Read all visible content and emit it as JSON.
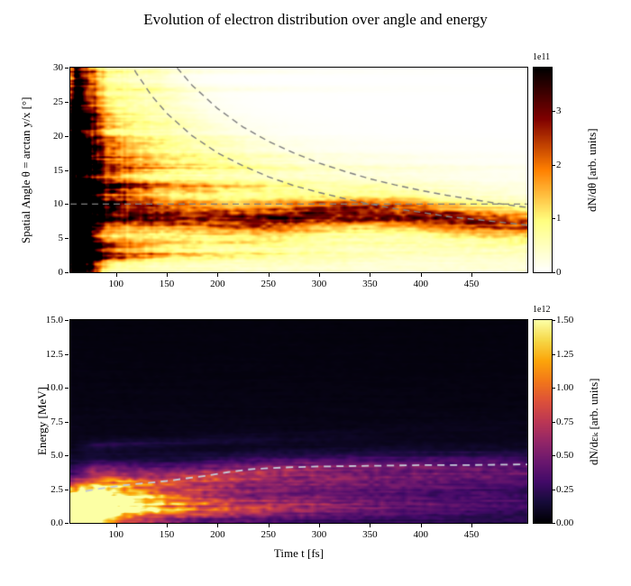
{
  "figure": {
    "title": "Evolution of electron distribution over angle and energy"
  },
  "chart_data": [
    {
      "type": "heatmap",
      "name": "angle-vs-time",
      "ylabel": "Spatial Angle θ = arctan y/x [°]",
      "xlim": [
        55,
        505
      ],
      "ylim": [
        0,
        30
      ],
      "vmax": 3.8,
      "xticks": [
        100,
        150,
        200,
        250,
        300,
        350,
        400,
        450
      ],
      "xtick_labels": [
        "100",
        "150",
        "200",
        "250",
        "300",
        "350",
        "400",
        "450"
      ],
      "yticks": [
        0,
        5,
        10,
        15,
        20,
        25,
        30
      ],
      "ytick_labels": [
        "0",
        "5",
        "10",
        "15",
        "20",
        "25",
        "30"
      ],
      "colormap": "afmhot_r",
      "colorbar": {
        "scale_label": "1e11",
        "label": "dN/dθ [arb. units]",
        "ticks": [
          0,
          1,
          2,
          3
        ],
        "tick_labels": [
          "0",
          "1",
          "2",
          "3"
        ]
      },
      "overlays": [
        {
          "name": "angle-threshold-line",
          "color": "#7f7f7f",
          "width": 1.4,
          "dash": [
            7,
            5
          ],
          "points": [
            [
              55,
              10
            ],
            [
              505,
              10
            ]
          ]
        },
        {
          "name": "envelope-curve-inner",
          "color": "#7f7f7f",
          "width": 1.4,
          "dash": [
            7,
            5
          ],
          "points": [
            [
              113,
              31
            ],
            [
              120,
              29.2
            ],
            [
              135,
              25.9
            ],
            [
              150,
              23.3
            ],
            [
              175,
              20
            ],
            [
              200,
              17.5
            ],
            [
              225,
              15.6
            ],
            [
              250,
              14
            ],
            [
              275,
              12.7
            ],
            [
              300,
              11.7
            ],
            [
              325,
              10.8
            ],
            [
              350,
              10
            ],
            [
              375,
              9.3
            ],
            [
              400,
              8.8
            ],
            [
              425,
              8.2
            ],
            [
              450,
              7.8
            ],
            [
              475,
              7.4
            ],
            [
              505,
              6.9
            ]
          ]
        },
        {
          "name": "envelope-curve-outer",
          "color": "#7f7f7f",
          "width": 1.4,
          "dash": [
            7,
            5
          ],
          "points": [
            [
              152,
              31
            ],
            [
              160,
              30
            ],
            [
              175,
              27.4
            ],
            [
              200,
              24
            ],
            [
              225,
              21.3
            ],
            [
              250,
              19.2
            ],
            [
              275,
              17.5
            ],
            [
              300,
              16
            ],
            [
              325,
              14.8
            ],
            [
              350,
              13.7
            ],
            [
              375,
              12.8
            ],
            [
              400,
              12
            ],
            [
              425,
              11.3
            ],
            [
              450,
              10.7
            ],
            [
              475,
              10.1
            ],
            [
              505,
              9.5
            ]
          ]
        }
      ],
      "field": {
        "background": 0.0,
        "noise": {
          "seed": 5
        },
        "streaks": {
          "seed": 11,
          "count": 80
        },
        "burst": {
          "t0": 60,
          "sigma_t": 13,
          "amp": 4.2,
          "theta_taper": 0.45
        },
        "shoulder": {
          "t0": 70,
          "sigma_t": 38,
          "amp": 1.1,
          "theta_center": 13,
          "theta_scale": 8
        },
        "band": {
          "amp_base": 1.7,
          "amp_peak": 0.5,
          "peak_t": 300,
          "peak_sigma": 90,
          "sigma": 1.4,
          "skirt_amp": 0.4,
          "skirt_sigma": 3.5,
          "center_points": [
            [
              55,
              9.2
            ],
            [
              100,
              8.8
            ],
            [
              150,
              8.3
            ],
            [
              200,
              7.9
            ],
            [
              250,
              7.8
            ],
            [
              300,
              8.4
            ],
            [
              350,
              8.7
            ],
            [
              400,
              8.3
            ],
            [
              450,
              7.6
            ],
            [
              505,
              7.0
            ]
          ]
        },
        "fan": {
          "amp": 0.5,
          "env_coef": 4300,
          "env_max": 30,
          "soft": 2.5,
          "t_decay": 500
        }
      }
    },
    {
      "type": "heatmap",
      "name": "energy-vs-time",
      "xlabel": "Time t [fs]",
      "ylabel": "Energy [MeV]",
      "xlim": [
        55,
        505
      ],
      "ylim": [
        0,
        15
      ],
      "vmax": 1.5,
      "xticks": [
        100,
        150,
        200,
        250,
        300,
        350,
        400,
        450
      ],
      "xtick_labels": [
        "100",
        "150",
        "200",
        "250",
        "300",
        "350",
        "400",
        "450"
      ],
      "yticks": [
        0,
        2.5,
        5,
        7.5,
        10,
        12.5,
        15
      ],
      "ytick_labels": [
        "0.0",
        "2.5",
        "5.0",
        "7.5",
        "10.0",
        "12.5",
        "15.0"
      ],
      "colormap": "inferno",
      "colorbar": {
        "scale_label": "1e12",
        "label": "dN/dεₖ [arb. units]",
        "ticks": [
          0,
          0.25,
          0.5,
          0.75,
          1,
          1.25,
          1.5
        ],
        "tick_labels": [
          "0.00",
          "0.25",
          "0.50",
          "0.75",
          "1.00",
          "1.25",
          "1.50"
        ]
      },
      "overlays": [
        {
          "name": "mean-energy-curve",
          "color": "#c3c9d8",
          "width": 1.8,
          "dash": [
            8,
            6
          ],
          "points": [
            [
              70,
              2.35
            ],
            [
              90,
              2.6
            ],
            [
              110,
              2.8
            ],
            [
              130,
              2.95
            ],
            [
              150,
              3.1
            ],
            [
              170,
              3.3
            ],
            [
              190,
              3.5
            ],
            [
              210,
              3.75
            ],
            [
              230,
              3.95
            ],
            [
              250,
              4.05
            ],
            [
              275,
              4.12
            ],
            [
              300,
              4.17
            ],
            [
              350,
              4.22
            ],
            [
              400,
              4.27
            ],
            [
              450,
              4.28
            ],
            [
              505,
              4.33
            ]
          ]
        }
      ],
      "field": {
        "background": 0.02,
        "noise": {
          "seed": 9
        },
        "wisps": {
          "seed": 21,
          "count": 60
        },
        "burst": {
          "t0": 63,
          "sigma_t": 13,
          "e0": 0.7,
          "sigma_e": 0.9,
          "amp": 1.7
        },
        "burst2": {
          "t0": 80,
          "sigma_t": 30,
          "e0": 1.5,
          "sigma_e": 1.3,
          "amp": 0.7
        },
        "tail": {
          "amp": 0.6,
          "t_decay": 70,
          "e_scale": 0.9
        },
        "ridge": {
          "amp": 0.55,
          "t_decay": 600,
          "sigma": 0.85,
          "offset": -0.5
        },
        "haze": {
          "amp1": 0.16,
          "e_scale1": 3.2,
          "t_decay": 800,
          "amp2": 0.05,
          "e_scale2": 6.0
        }
      }
    }
  ]
}
